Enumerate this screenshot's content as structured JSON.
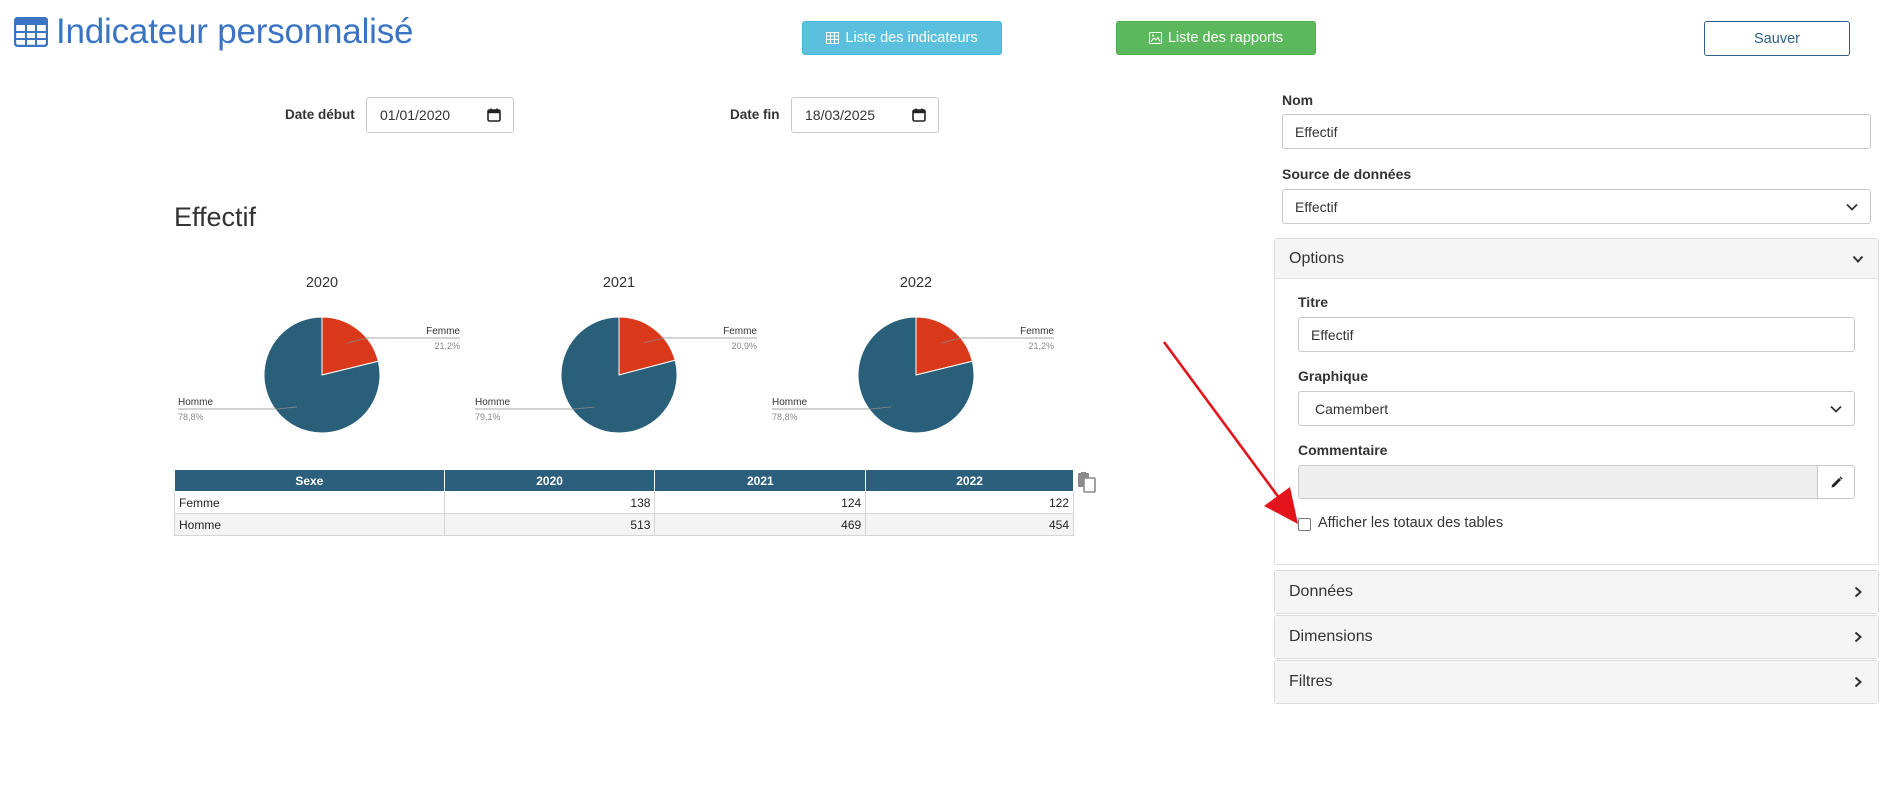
{
  "header": {
    "title": "Indicateur personnalisé",
    "btn_indicators": "Liste des indicateurs",
    "btn_reports": "Liste des rapports",
    "btn_save": "Sauver"
  },
  "filters": {
    "start_label": "Date début",
    "start_value": "01/01/2020",
    "end_label": "Date fin",
    "end_value": "18/03/2025"
  },
  "chart_section": {
    "title": "Effectif"
  },
  "chart_data": [
    {
      "type": "pie",
      "title": "2020",
      "labels": [
        "Femme",
        "Homme"
      ],
      "values": [
        21.2,
        78.8
      ],
      "value_labels": [
        "21,2%",
        "78,8%"
      ],
      "colors": [
        "#d9391a",
        "#2a5f7a"
      ]
    },
    {
      "type": "pie",
      "title": "2021",
      "labels": [
        "Femme",
        "Homme"
      ],
      "values": [
        20.9,
        79.1
      ],
      "value_labels": [
        "20,9%",
        "79,1%"
      ],
      "colors": [
        "#d9391a",
        "#2a5f7a"
      ]
    },
    {
      "type": "pie",
      "title": "2022",
      "labels": [
        "Femme",
        "Homme"
      ],
      "values": [
        21.2,
        78.8
      ],
      "value_labels": [
        "21,2%",
        "78,8%"
      ],
      "colors": [
        "#d9391a",
        "#2a5f7a"
      ]
    }
  ],
  "table": {
    "headers": [
      "Sexe",
      "2020",
      "2021",
      "2022"
    ],
    "rows": [
      [
        "Femme",
        "138",
        "124",
        "122"
      ],
      [
        "Homme",
        "513",
        "469",
        "454"
      ]
    ]
  },
  "right_panel": {
    "name_label": "Nom",
    "name_value": "Effectif",
    "source_label": "Source de données",
    "source_value": "Effectif",
    "options_title": "Options",
    "titre_label": "Titre",
    "titre_value": "Effectif",
    "graphique_label": "Graphique",
    "graphique_value": "Camembert",
    "commentaire_label": "Commentaire",
    "checkbox_label": "Afficher les totaux des tables",
    "donnees_title": "Données",
    "dimensions_title": "Dimensions",
    "filtres_title": "Filtres"
  },
  "colors": {
    "brand_blue": "#3a74c2",
    "info": "#5bc0de",
    "success": "#5cb85c",
    "table_header": "#2c5f7c",
    "pie_femme": "#d9391a",
    "pie_homme": "#2a5f7a",
    "annotation_arrow": "#e3141b"
  },
  "icons": {
    "title": "table-icon",
    "indicators": "table-icon",
    "reports": "image-icon",
    "copy": "copy-icon",
    "edit": "pencil-icon"
  }
}
